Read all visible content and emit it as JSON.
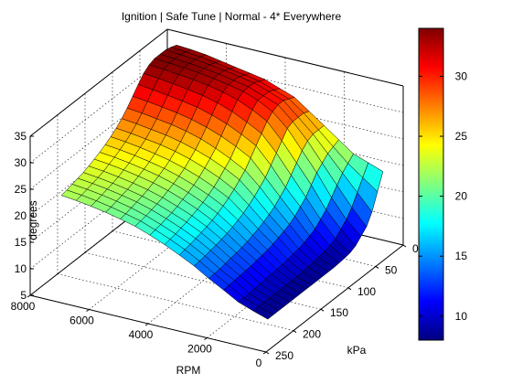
{
  "chart_data": {
    "type": "surface3d",
    "title": "Ignition | Safe Tune | Normal - 4* Everywhere",
    "xlabel": "RPM",
    "ylabel": "kPa",
    "zlabel": "degrees",
    "x_ticks": [
      "0",
      "2000",
      "4000",
      "6000",
      "8000"
    ],
    "y_ticks": [
      "0",
      "50",
      "100",
      "150",
      "200",
      "250"
    ],
    "z_ticks": [
      "5",
      "10",
      "15",
      "20",
      "25",
      "30",
      "35"
    ],
    "xlim": [
      0,
      8000
    ],
    "ylim": [
      0,
      250
    ],
    "zlim": [
      5,
      35
    ],
    "colorbar": {
      "colormap": "jet",
      "range": [
        8,
        34
      ],
      "ticks": [
        "10",
        "15",
        "20",
        "25",
        "30"
      ]
    },
    "grid": true,
    "rpm": [
      500,
      1000,
      1500,
      2000,
      2500,
      3000,
      3500,
      4000,
      4500,
      5000,
      5500,
      6000,
      6500,
      7000,
      7500
    ],
    "kpa": [
      10,
      20,
      30,
      40,
      50,
      60,
      70,
      80,
      90,
      100,
      110,
      120,
      130,
      140,
      150,
      160,
      170,
      180,
      190,
      200,
      210,
      220
    ],
    "ignition": [
      [
        19,
        16,
        13,
        11,
        10,
        9,
        8.5,
        8.3,
        8.2,
        8.1,
        8.1,
        8.1,
        8.1,
        8.1,
        8.1,
        8.1,
        8.1,
        8.1,
        8.1,
        8.1,
        8.1,
        8.1
      ],
      [
        20,
        18,
        16,
        14,
        12.5,
        11.5,
        10.5,
        10,
        9.7,
        9.5,
        9.3,
        9.2,
        9.1,
        9,
        9,
        9,
        9,
        9,
        9,
        9,
        9,
        9
      ],
      [
        21,
        20,
        19,
        17.5,
        16,
        14.5,
        13.5,
        12.5,
        12,
        11.5,
        11.2,
        11,
        10.8,
        10.6,
        10.5,
        10.4,
        10.3,
        10.2,
        10.1,
        10,
        10,
        10
      ],
      [
        23,
        22.5,
        22,
        21,
        20,
        18.5,
        17,
        16,
        15,
        14.3,
        13.8,
        13.4,
        13,
        12.7,
        12.5,
        12.3,
        12.1,
        12,
        11.9,
        11.8,
        11.7,
        11.6
      ],
      [
        25,
        25,
        25,
        24.5,
        23.5,
        22,
        20.5,
        19,
        18,
        17,
        16.3,
        15.7,
        15.2,
        14.8,
        14.4,
        14.1,
        13.9,
        13.7,
        13.5,
        13.3,
        13.2,
        13.1
      ],
      [
        27,
        27.5,
        27.5,
        27.5,
        27,
        25.5,
        24,
        22.5,
        21,
        20,
        19,
        18.2,
        17.5,
        17,
        16.5,
        16.1,
        15.8,
        15.5,
        15.3,
        15.1,
        14.9,
        14.8
      ],
      [
        29,
        29.5,
        30,
        30,
        29.5,
        28.5,
        27,
        25.5,
        24,
        22.5,
        21.5,
        20.5,
        19.7,
        19,
        18.4,
        17.9,
        17.5,
        17.2,
        16.9,
        16.6,
        16.4,
        16.2
      ],
      [
        30,
        30.5,
        31,
        31,
        31,
        30,
        28.5,
        27,
        25.5,
        24,
        23,
        22,
        21.1,
        20.4,
        19.8,
        19.3,
        18.9,
        18.5,
        18.2,
        17.9,
        17.7,
        17.5
      ],
      [
        31,
        31.5,
        32,
        32,
        32,
        31.2,
        29.8,
        28.3,
        26.8,
        25.3,
        24.2,
        23.2,
        22.3,
        21.6,
        21,
        20.5,
        20,
        19.6,
        19.3,
        19,
        18.8,
        18.6
      ],
      [
        31.5,
        32,
        32.5,
        32.6,
        32.6,
        32,
        30.8,
        29.3,
        27.8,
        26.4,
        25.2,
        24.2,
        23.3,
        22.6,
        22,
        21.5,
        21,
        20.6,
        20.3,
        20,
        19.8,
        19.6
      ],
      [
        32,
        32.5,
        33,
        33.1,
        33.1,
        32.6,
        31.5,
        30.1,
        28.6,
        27.2,
        26,
        25,
        24.1,
        23.4,
        22.8,
        22.3,
        21.8,
        21.4,
        21.1,
        20.8,
        20.5,
        20.3
      ],
      [
        32.5,
        33,
        33.4,
        33.5,
        33.5,
        33,
        32,
        30.6,
        29.2,
        27.8,
        26.6,
        25.6,
        24.7,
        24,
        23.4,
        22.9,
        22.4,
        22,
        21.7,
        21.4,
        21.1,
        20.9
      ],
      [
        33,
        33.4,
        33.7,
        33.8,
        33.8,
        33.3,
        32.4,
        31,
        29.6,
        28.2,
        27,
        26,
        25.2,
        24.5,
        23.9,
        23.4,
        22.9,
        22.5,
        22.2,
        21.9,
        21.6,
        21.4
      ],
      [
        33.3,
        33.7,
        34,
        34,
        34,
        33.6,
        32.7,
        31.4,
        30,
        28.6,
        27.4,
        26.4,
        25.6,
        24.9,
        24.3,
        23.8,
        23.3,
        22.9,
        22.6,
        22.3,
        22,
        21.8
      ],
      [
        33.5,
        33.9,
        34.2,
        34.2,
        34.2,
        33.8,
        33,
        31.7,
        30.3,
        28.9,
        27.7,
        26.7,
        25.9,
        25.2,
        24.6,
        24.1,
        23.6,
        23.2,
        22.9,
        22.6,
        22.3,
        22.1
      ]
    ]
  }
}
